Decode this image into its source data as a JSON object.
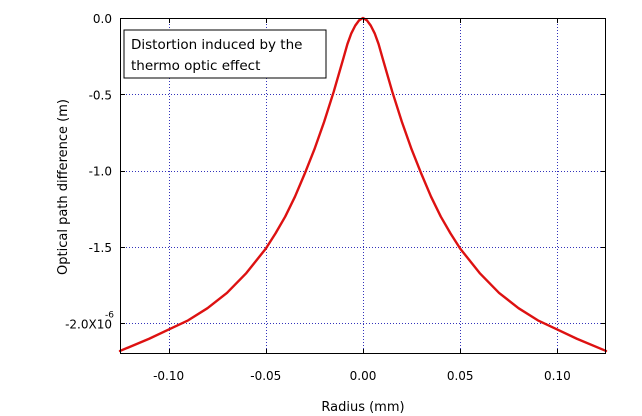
{
  "chart_data": {
    "type": "line",
    "title": "",
    "xlabel": "Radius (mm)",
    "ylabel": "Optical path difference (m)",
    "xlim": [
      -0.125,
      0.125
    ],
    "ylim": [
      -2.2e-06,
      0.0
    ],
    "x_ticks": [
      -0.1,
      -0.05,
      0.0,
      0.05,
      0.1
    ],
    "x_tick_labels": [
      "-0.10",
      "-0.05",
      "0.00",
      "0.05",
      "0.10"
    ],
    "y_ticks": [
      0.0,
      -5e-07,
      -1e-06,
      -1.5e-06,
      -2e-06
    ],
    "y_tick_labels": [
      "0.0",
      "-0.5",
      "-1.0",
      "-1.5",
      "-2.0X10"
    ],
    "y_exponent_label": "-6",
    "grid": true,
    "annotation": {
      "lines": [
        "Distortion induced by the",
        "thermo optic effect"
      ]
    },
    "colors": {
      "line": "#dd1111",
      "grid": "#3333bb",
      "axis": "#000000",
      "background": "#ffffff"
    },
    "series": [
      {
        "x": [
          -0.125,
          -0.11,
          -0.1,
          -0.09,
          -0.08,
          -0.07,
          -0.06,
          -0.05,
          -0.045,
          -0.04,
          -0.035,
          -0.03,
          -0.025,
          -0.02,
          -0.015,
          -0.01,
          -0.008,
          -0.006,
          -0.004,
          -0.002,
          0.0,
          0.002,
          0.004,
          0.006,
          0.008,
          0.01,
          0.015,
          0.02,
          0.025,
          0.03,
          0.035,
          0.04,
          0.045,
          0.05,
          0.06,
          0.07,
          0.08,
          0.09,
          0.1,
          0.11,
          0.125
        ],
        "y": [
          -2.18e-06,
          -2.1e-06,
          -2.04e-06,
          -1.98e-06,
          -1.9e-06,
          -1.8e-06,
          -1.67e-06,
          -1.51e-06,
          -1.41e-06,
          -1.3e-06,
          -1.17e-06,
          -1.02e-06,
          -8.6e-07,
          -6.8e-07,
          -4.8e-07,
          -2.6e-07,
          -1.7e-07,
          -1e-07,
          -5e-08,
          -1.5e-08,
          0.0,
          -1.5e-08,
          -5e-08,
          -1e-07,
          -1.7e-07,
          -2.6e-07,
          -4.8e-07,
          -6.8e-07,
          -8.6e-07,
          -1.02e-06,
          -1.17e-06,
          -1.3e-06,
          -1.41e-06,
          -1.51e-06,
          -1.67e-06,
          -1.8e-06,
          -1.9e-06,
          -1.98e-06,
          -2.04e-06,
          -2.1e-06,
          -2.18e-06
        ]
      }
    ]
  }
}
